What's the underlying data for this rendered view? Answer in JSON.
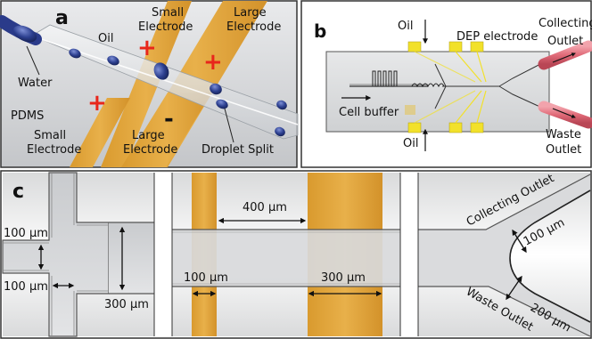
{
  "panel_a": {
    "letter": "a",
    "oil": "Oil",
    "small_electrode_top": [
      "Small",
      "Electrode"
    ],
    "large_electrode_top": [
      "Large",
      "Electrode"
    ],
    "water": "Water",
    "pdms": "PDMS",
    "small_electrode_bottom": [
      "Small",
      "Electrode"
    ],
    "large_electrode_bottom": [
      "Large",
      "Electrode"
    ],
    "droplet_split": "Droplet Split",
    "plus": "+",
    "minus": "-"
  },
  "panel_b": {
    "letter": "b",
    "oil_top": "Oil",
    "dep_electrode": "DEP electrode",
    "collecting_outlet": [
      "Collecting",
      "Outlet"
    ],
    "cell_buffer": "Cell buffer",
    "oil_bottom": "Oil",
    "waste_outlet": [
      "Waste",
      "Outlet"
    ]
  },
  "panel_c": {
    "letter": "c",
    "dim_100_a": "100 μm",
    "dim_100_b": "100 μm",
    "dim_300": "300 μm",
    "dim_400": "400 μm",
    "dim_100_c": "100 μm",
    "dim_300_b": "300 μm",
    "collecting_outlet": "Collecting Outlet",
    "dim_100_d": "100 μm",
    "waste_outlet": "Waste Outlet",
    "dim_200": "200 μm"
  },
  "colors": {
    "electrode": "#e0a43a",
    "droplet": "#2c3f8f",
    "tube": "#e06a78",
    "dep_pad": "#f2e12a",
    "plus": "#e8261b"
  }
}
